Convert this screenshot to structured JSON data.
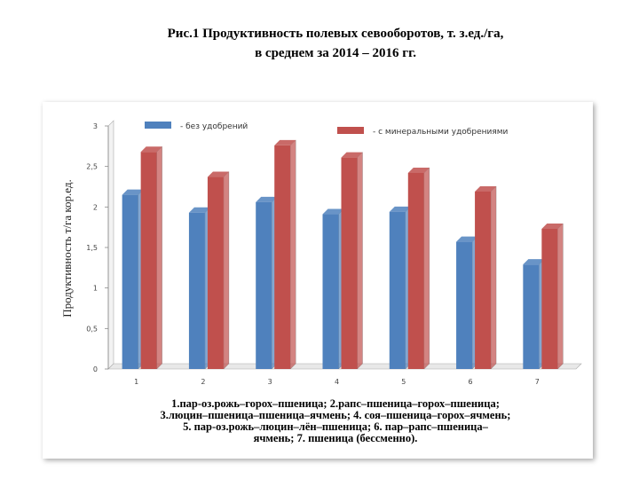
{
  "chart_data": {
    "type": "bar",
    "title_lines": [
      "Рис.1 Продуктивность полевых севооборотов, т. з.ед./га,",
      "в среднем за 2014 – 2016 гг."
    ],
    "y_label": "Продуктивность т/га кор.ед.",
    "categories": [
      "1",
      "2",
      "3",
      "4",
      "5",
      "6",
      "7"
    ],
    "series": [
      {
        "name": "- без удобрений",
        "color": "#4f81bd",
        "values": [
          2.15,
          1.93,
          2.06,
          1.91,
          1.94,
          1.57,
          1.29
        ]
      },
      {
        "name": "- с минеральными удобрениями",
        "color": "#c0504d",
        "values": [
          2.68,
          2.37,
          2.76,
          2.61,
          2.42,
          2.19,
          1.73
        ]
      }
    ],
    "ylim": [
      0,
      3
    ],
    "yticks": [
      0,
      {
        "value": 0.5,
        "label": "0,5"
      },
      1,
      {
        "value": 1.5,
        "label": "1,5"
      },
      2,
      {
        "value": 2.5,
        "label": "2,5"
      },
      3
    ],
    "legend": "top",
    "caption_lines": [
      "1.пар-оз.рожь–горох–пшеница;  2.рапс–пшеница–горох–пшеница;",
      "3.люцин–пшеница–пшеница–ячмень;  4. соя–пшеница–горох–ячмень;",
      "5. пар-оз.рожь–люцин–лён–пшеница;  6. пар–рапс–пшеница–",
      "ячмень;  7. пшеница (бессменно)."
    ]
  }
}
